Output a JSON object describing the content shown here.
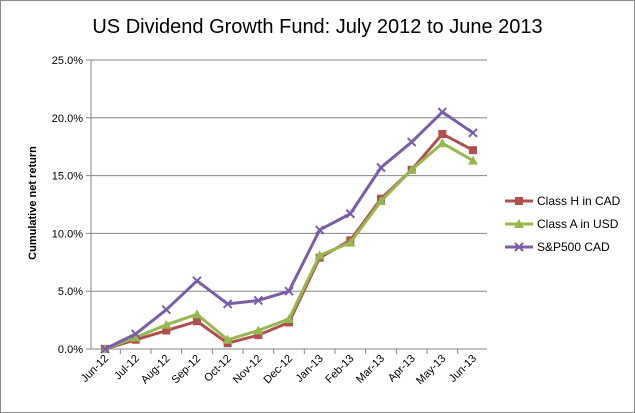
{
  "chart_data": {
    "type": "line",
    "title": "US Dividend Growth Fund: July 2012 to June 2013",
    "ylabel": "Cumulative net return",
    "xlabel": "",
    "categories": [
      "Jun-12",
      "Jul-12",
      "Aug-12",
      "Sep-12",
      "Oct-12",
      "Nov-12",
      "Dec-12",
      "Jan-13",
      "Feb-13",
      "Mar-13",
      "Apr-13",
      "May-13",
      "Jun-13"
    ],
    "yticks": [
      "0.0%",
      "5.0%",
      "10.0%",
      "15.0%",
      "20.0%",
      "25.0%"
    ],
    "ylim": [
      0,
      25
    ],
    "grid": "horizontal",
    "legend_position": "right",
    "series": [
      {
        "name": "Class H in CAD",
        "color": "#b0504e",
        "marker": "square",
        "values": [
          0.0,
          0.8,
          1.6,
          2.4,
          0.5,
          1.2,
          2.3,
          7.9,
          9.4,
          13.0,
          15.5,
          18.6,
          17.2
        ]
      },
      {
        "name": "Class A in USD",
        "color": "#97b84f",
        "marker": "triangle",
        "values": [
          0.0,
          1.0,
          2.1,
          3.0,
          0.8,
          1.6,
          2.6,
          8.1,
          9.2,
          12.8,
          15.5,
          17.8,
          16.3
        ]
      },
      {
        "name": "S&P500 CAD",
        "color": "#7a5ea8",
        "marker": "x",
        "values": [
          0.0,
          1.3,
          3.4,
          5.9,
          3.9,
          4.2,
          5.0,
          10.3,
          11.7,
          15.7,
          17.9,
          20.5,
          18.7
        ]
      }
    ]
  }
}
